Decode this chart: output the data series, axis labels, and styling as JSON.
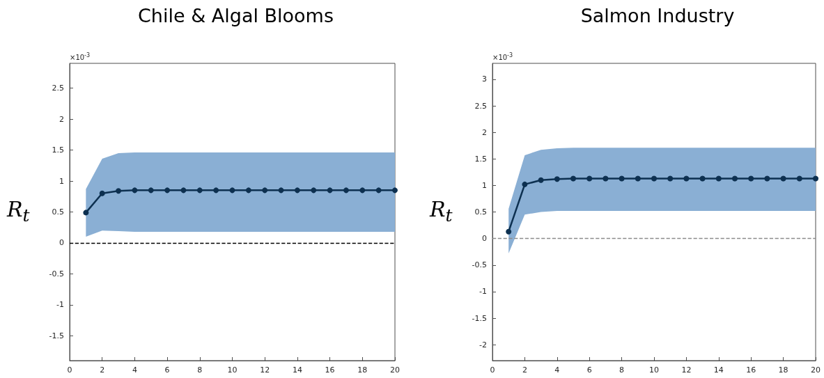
{
  "chart_data": [
    {
      "type": "line",
      "title": "Chile & Algal Blooms",
      "ylabel": "R$_{t}$",
      "annotations": [
        "×10$^{-3}$"
      ],
      "marker": "circle",
      "line_style": "solid",
      "grid": false,
      "x": [
        1,
        2,
        3,
        4,
        5,
        6,
        7,
        8,
        9,
        10,
        11,
        12,
        13,
        14,
        15,
        16,
        17,
        18,
        19,
        20
      ],
      "series": [
        {
          "color": "#0d3050",
          "values": [
            0.49,
            0.8,
            0.84,
            0.85,
            0.85,
            0.85,
            0.85,
            0.85,
            0.85,
            0.85,
            0.85,
            0.85,
            0.85,
            0.85,
            0.85,
            0.85,
            0.85,
            0.85,
            0.85,
            0.85
          ],
          "lower": [
            0.1,
            0.2,
            0.19,
            0.18,
            0.18,
            0.18,
            0.18,
            0.18,
            0.18,
            0.18,
            0.18,
            0.18,
            0.18,
            0.18,
            0.18,
            0.18,
            0.18,
            0.18,
            0.18,
            0.18
          ],
          "upper": [
            0.87,
            1.36,
            1.45,
            1.46,
            1.46,
            1.46,
            1.46,
            1.46,
            1.46,
            1.46,
            1.46,
            1.46,
            1.46,
            1.46,
            1.46,
            1.46,
            1.46,
            1.46,
            1.46,
            1.46
          ]
        }
      ],
      "xlim": [
        0,
        20
      ],
      "xticks": [
        0,
        2,
        4,
        6,
        8,
        10,
        12,
        14,
        16,
        18,
        20
      ],
      "ylim": [
        -1.9,
        2.9
      ],
      "yticks": [
        -1.5,
        -1,
        -0.5,
        0,
        0.5,
        1,
        1.5,
        2,
        2.5
      ],
      "ref_lines": [
        {
          "axis": "y",
          "value": 0,
          "color": "#000000",
          "line_style": "dashed"
        }
      ]
    },
    {
      "type": "line",
      "title": "Salmon Industry",
      "ylabel": "R$_{t}$",
      "annotations": [
        "×10$^{-3}$"
      ],
      "marker": "circle",
      "line_style": "solid",
      "grid": false,
      "x": [
        1,
        2,
        3,
        4,
        5,
        6,
        7,
        8,
        9,
        10,
        11,
        12,
        13,
        14,
        15,
        16,
        17,
        18,
        19,
        20
      ],
      "series": [
        {
          "color": "#0d3050",
          "values": [
            0.13,
            1.02,
            1.1,
            1.12,
            1.13,
            1.13,
            1.13,
            1.13,
            1.13,
            1.13,
            1.13,
            1.13,
            1.13,
            1.13,
            1.13,
            1.13,
            1.13,
            1.13,
            1.13,
            1.13
          ],
          "lower": [
            -0.28,
            0.45,
            0.5,
            0.52,
            0.52,
            0.52,
            0.52,
            0.52,
            0.52,
            0.52,
            0.52,
            0.52,
            0.52,
            0.52,
            0.52,
            0.52,
            0.52,
            0.52,
            0.52,
            0.52
          ],
          "upper": [
            0.56,
            1.57,
            1.67,
            1.7,
            1.71,
            1.71,
            1.71,
            1.71,
            1.71,
            1.71,
            1.71,
            1.71,
            1.71,
            1.71,
            1.71,
            1.71,
            1.71,
            1.71,
            1.71,
            1.71
          ]
        }
      ],
      "xlim": [
        0,
        20
      ],
      "xticks": [
        0,
        2,
        4,
        6,
        8,
        10,
        12,
        14,
        16,
        18,
        20
      ],
      "ylim": [
        -2.3,
        3.3
      ],
      "yticks": [
        -2,
        -1.5,
        -1,
        -0.5,
        0,
        0.5,
        1,
        1.5,
        2,
        2.5,
        3
      ],
      "ref_lines": [
        {
          "axis": "y",
          "value": 0,
          "color": "#8c8c8c",
          "line_style": "dashed"
        }
      ]
    }
  ]
}
